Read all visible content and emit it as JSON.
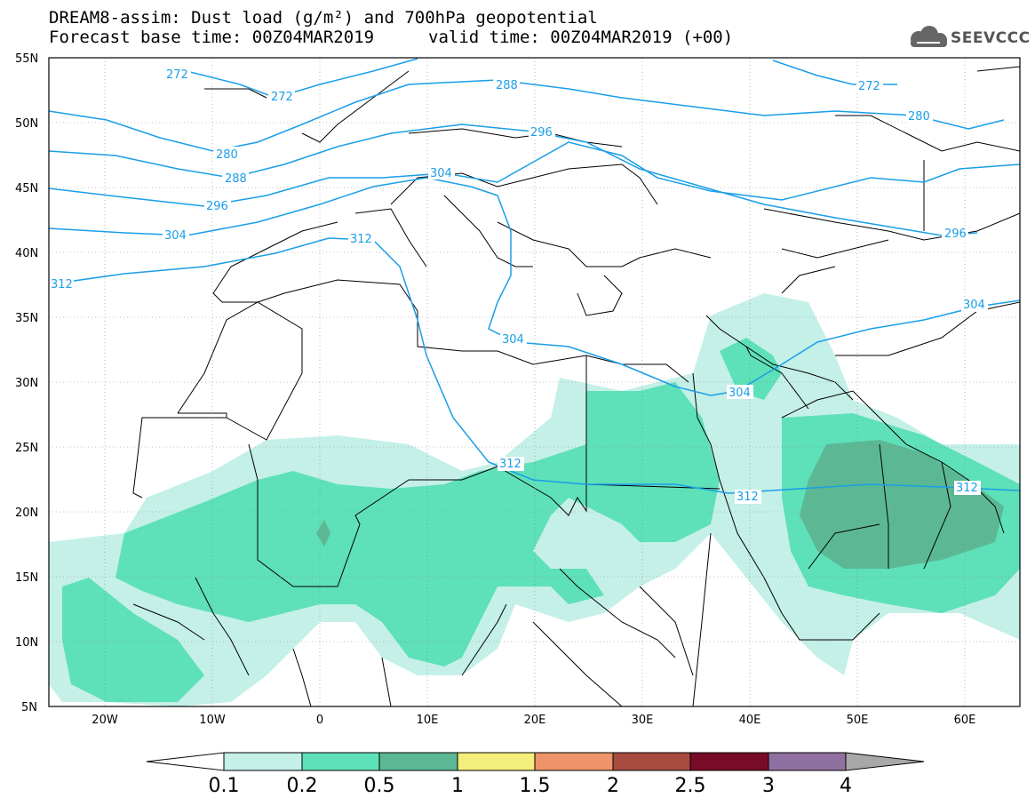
{
  "header": {
    "title_line1": "DREAM8-assim: Dust load (g/m²) and 700hPa geopotential",
    "title_line2": "Forecast base time: 00Z04MAR2019",
    "valid_time": "valid time: 00Z04MAR2019 (+00)",
    "logo_text": "SEEVCCC",
    "logo_icon": "cloud-icon"
  },
  "axes": {
    "lon_range": [
      -25,
      65
    ],
    "lat_range": [
      5,
      55
    ],
    "lat_ticks": [
      "55N",
      "50N",
      "45N",
      "40N",
      "35N",
      "30N",
      "25N",
      "20N",
      "15N",
      "10N",
      "5N"
    ],
    "lon_ticks": [
      "20W",
      "10W",
      "0",
      "10E",
      "20E",
      "30E",
      "40E",
      "50E",
      "60E"
    ]
  },
  "colorbar": {
    "labels": [
      "0.1",
      "0.2",
      "0.5",
      "1",
      "1.5",
      "2",
      "2.5",
      "3",
      "4"
    ],
    "colors": [
      "#c4f0e8",
      "#5ee0b8",
      "#5cb894",
      "#f4ee7c",
      "#ee946a",
      "#a84c40",
      "#780c28",
      "#9070a0",
      "#a8a8a8"
    ]
  },
  "contour_labels": [
    "272",
    "272",
    "272",
    "280",
    "280",
    "288",
    "288",
    "296",
    "296",
    "296",
    "304",
    "304",
    "304",
    "304",
    "304",
    "312",
    "312",
    "312",
    "312",
    "312"
  ],
  "colors": {
    "contour": "#1a9ee8",
    "coast": "#000000"
  }
}
